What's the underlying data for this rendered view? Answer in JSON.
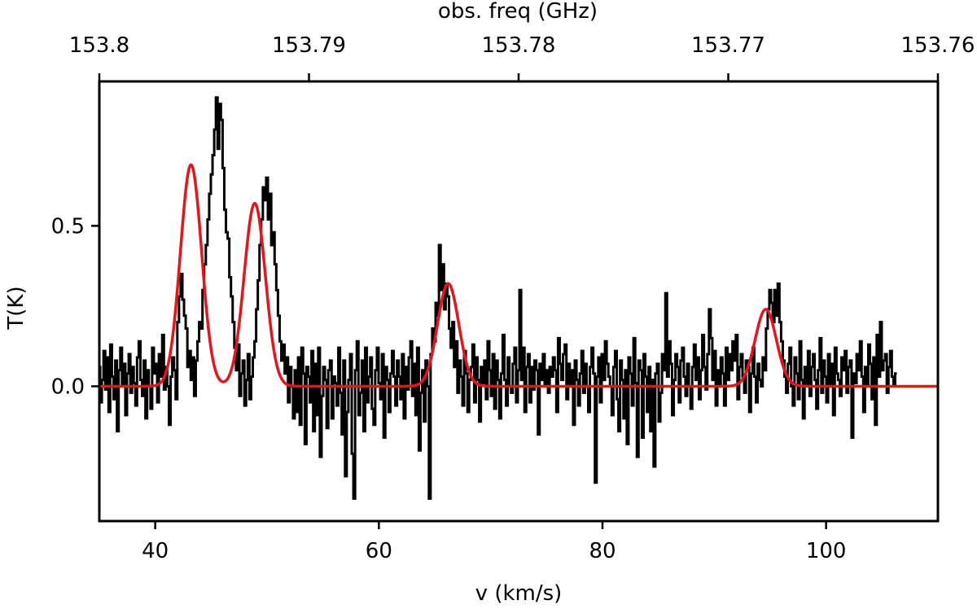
{
  "chart_data": {
    "type": "line",
    "title": "",
    "xlabel": "v (km/s)",
    "ylabel": "T(K)",
    "top_xlabel": "obs. freq (GHz)",
    "xlim": [
      35,
      110
    ],
    "ylim": [
      -0.42,
      0.95
    ],
    "xticks": [
      40,
      60,
      80,
      100
    ],
    "yticks": [
      0.0,
      0.5
    ],
    "ytick_labels": [
      "0.0",
      "0.5"
    ],
    "top_xticks": [
      "153.8",
      "153.79",
      "153.78",
      "153.77",
      "153.76"
    ],
    "top_freq_range": [
      153.8,
      153.76
    ],
    "colors": {
      "observed": "#000000",
      "fit": "#e8141b"
    },
    "series": [
      {
        "kind": "step",
        "sampling": {
          "x_start": 35.0,
          "x_step": 0.15
        },
        "values": [
          0.06,
          -0.05,
          0.02,
          0.11,
          -0.01,
          0.09,
          -0.08,
          0.13,
          0.03,
          -0.04,
          0.08,
          -0.14,
          0.05,
          0.12,
          0.0,
          0.07,
          -0.09,
          0.04,
          0.1,
          -0.02,
          0.06,
          0.01,
          -0.06,
          0.09,
          0.14,
          0.02,
          -0.03,
          0.08,
          -0.1,
          0.05,
          0.0,
          -0.07,
          0.12,
          0.04,
          0.07,
          -0.05,
          0.1,
          0.03,
          0.16,
          -0.01,
          0.06,
          0.0,
          -0.12,
          0.03,
          0.09,
          0.05,
          -0.04,
          0.2,
          0.28,
          0.35,
          0.27,
          0.22,
          0.18,
          0.06,
          0.11,
          0.02,
          0.09,
          -0.03,
          0.08,
          0.14,
          0.2,
          0.18,
          0.3,
          0.38,
          0.44,
          0.52,
          0.6,
          0.66,
          0.72,
          0.8,
          0.9,
          0.74,
          0.88,
          0.83,
          0.68,
          0.55,
          0.48,
          0.46,
          0.34,
          0.28,
          0.2,
          0.12,
          0.05,
          0.13,
          -0.03,
          0.04,
          0.08,
          -0.06,
          0.02,
          0.1,
          -0.04,
          0.03,
          0.09,
          0.14,
          0.24,
          0.33,
          0.44,
          0.52,
          0.62,
          0.58,
          0.65,
          0.52,
          0.6,
          0.44,
          0.48,
          0.38,
          0.3,
          0.22,
          0.14,
          0.08,
          0.13,
          0.04,
          0.09,
          -0.05,
          0.06,
          0.0,
          -0.1,
          0.05,
          -0.08,
          0.09,
          -0.12,
          0.12,
          0.04,
          -0.18,
          0.06,
          0.03,
          -0.05,
          0.11,
          -0.14,
          0.07,
          -0.09,
          0.12,
          -0.22,
          -0.03,
          0.06,
          0.02,
          -0.13,
          0.05,
          0.08,
          -0.1,
          0.03,
          0.01,
          -0.06,
          0.12,
          -0.02,
          -0.15,
          0.08,
          -0.28,
          -0.08,
          0.02,
          0.1,
          -0.21,
          -0.35,
          0.05,
          0.14,
          -0.09,
          -0.02,
          0.08,
          -0.14,
          0.12,
          -0.05,
          0.03,
          0.09,
          -0.07,
          -0.12,
          0.05,
          0.12,
          0.01,
          -0.04,
          0.1,
          -0.16,
          0.06,
          0.02,
          -0.08,
          0.04,
          0.11,
          0.03,
          -0.06,
          0.08,
          0.03,
          -0.04,
          0.1,
          -0.1,
          0.06,
          -0.01,
          0.09,
          0.14,
          -0.03,
          0.07,
          -0.09,
          0.12,
          -0.2,
          -0.02,
          0.05,
          -0.11,
          0.08,
          0.0,
          -0.35,
          0.1,
          0.18,
          0.14,
          0.26,
          0.22,
          0.44,
          0.3,
          0.38,
          0.24,
          0.32,
          0.28,
          0.18,
          0.12,
          0.2,
          0.06,
          0.14,
          -0.02,
          0.08,
          0.03,
          -0.06,
          0.11,
          0.04,
          -0.08,
          0.02,
          0.06,
          0.13,
          -0.05,
          0.09,
          0.02,
          -0.11,
          0.06,
          0.01,
          0.08,
          -0.04,
          0.14,
          0.05,
          -0.03,
          0.1,
          -0.07,
          0.08,
          0.02,
          -0.1,
          0.04,
          0.16,
          0.02,
          -0.06,
          0.09,
          0.0,
          -0.02,
          0.07,
          0.12,
          -0.05,
          0.05,
          0.3,
          0.02,
          0.12,
          -0.08,
          0.06,
          0.1,
          -0.05,
          0.06,
          -0.01,
          0.08,
          0.05,
          -0.15,
          0.07,
          0.02,
          0.1,
          0.0,
          0.05,
          -0.02,
          0.06,
          0.03,
          0.09,
          0.05,
          -0.08,
          0.15,
          0.07,
          0.02,
          0.1,
          0.13,
          -0.04,
          0.07,
          0.0,
          0.05,
          -0.12,
          0.08,
          0.02,
          -0.06,
          0.04,
          0.11,
          -0.02,
          0.07,
          0.0,
          -0.08,
          0.06,
          0.12,
          0.04,
          -0.3,
          0.03,
          0.09,
          -0.05,
          0.1,
          0.02,
          0.14,
          0.07,
          0.03,
          0.0,
          -0.09,
          0.06,
          0.11,
          -0.04,
          -0.14,
          0.08,
          0.02,
          -0.1,
          0.05,
          -0.18,
          0.09,
          0.04,
          -0.06,
          0.15,
          0.01,
          -0.22,
          0.08,
          0.05,
          -0.16,
          0.1,
          0.03,
          -0.08,
          0.06,
          -0.14,
          0.02,
          -0.25,
          0.04,
          0.07,
          -0.11,
          -0.02,
          0.1,
          0.05,
          0.29,
          0.03,
          0.14,
          0.07,
          -0.09,
          0.02,
          0.1,
          0.06,
          -0.05,
          0.08,
          0.12,
          0.03,
          -0.03,
          0.07,
          0.0,
          -0.07,
          0.06,
          0.13,
          0.02,
          0.09,
          -0.04,
          0.05,
          0.16,
          0.06,
          -0.01,
          0.1,
          0.24,
          0.15,
          0.02,
          0.11,
          -0.06,
          0.05,
          0.0,
          0.09,
          0.04,
          -0.06,
          0.12,
          0.02,
          0.1,
          0.05,
          0.14,
          0.08,
          0.16,
          -0.04,
          0.06,
          0.1,
          0.03,
          -0.02,
          0.08,
          0.06,
          -0.08,
          0.04,
          0.12,
          0.03,
          -0.05,
          0.07,
          0.02,
          0.0,
          0.09,
          0.05,
          0.18,
          0.24,
          0.3,
          0.26,
          0.2,
          0.3,
          0.22,
          0.32,
          0.2,
          0.14,
          0.08,
          0.03,
          -0.02,
          0.07,
          0.12,
          0.0,
          -0.06,
          0.09,
          0.04,
          -0.04,
          0.14,
          0.02,
          -0.1,
          0.06,
          0.0,
          0.11,
          -0.03,
          0.06,
          0.1,
          0.02,
          -0.07,
          0.05,
          0.15,
          -0.02,
          0.08,
          0.03,
          -0.05,
          0.1,
          0.0,
          0.07,
          -0.09,
          0.12,
          0.04,
          0.02,
          -0.03,
          0.09,
          0.05,
          0.11,
          -0.02,
          0.06,
          0.08,
          -0.16,
          0.04,
          0.01,
          0.1,
          0.05,
          0.14,
          0.03,
          -0.08,
          0.06,
          0.0,
          0.13,
          0.07,
          -0.04,
          0.09,
          -0.12,
          0.16,
          0.03,
          0.2,
          0.05,
          0.08,
          0.1,
          -0.02,
          0.06,
          0.11,
          0.03,
          0.0,
          0.04
        ]
      },
      {
        "kind": "model",
        "components": [
          {
            "center": 43.2,
            "amplitude": 0.69,
            "sigma": 0.95
          },
          {
            "center": 48.9,
            "amplitude": 0.57,
            "sigma": 0.95
          },
          {
            "center": 66.2,
            "amplitude": 0.32,
            "sigma": 0.95
          },
          {
            "center": 94.6,
            "amplitude": 0.24,
            "sigma": 0.95
          }
        ]
      }
    ]
  }
}
